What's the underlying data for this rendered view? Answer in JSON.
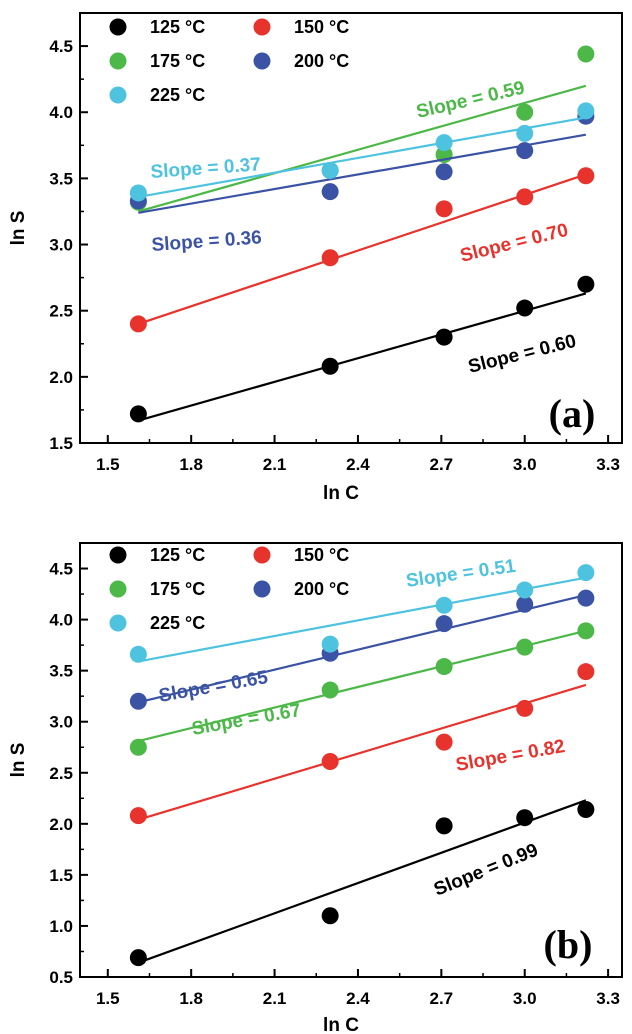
{
  "chart_data": [
    {
      "type": "scatter",
      "panel_label": "(a)",
      "xlabel": "ln C",
      "ylabel": "ln S",
      "xlim": [
        1.4,
        3.35
      ],
      "ylim": [
        1.5,
        4.75
      ],
      "xticks": [
        "1.5",
        "1.8",
        "2.1",
        "2.4",
        "2.7",
        "3.0",
        "3.3"
      ],
      "yticks": [
        "1.5",
        "2.0",
        "2.5",
        "3.0",
        "3.5",
        "4.0",
        "4.5"
      ],
      "legend_position": "top-left",
      "x": [
        1.61,
        2.3,
        2.71,
        3.0,
        3.22
      ],
      "series": [
        {
          "name": "125 °C",
          "color": "#000000",
          "y": [
            1.72,
            2.08,
            2.3,
            2.52,
            2.7
          ],
          "fit": [
            1.67,
            2.63
          ],
          "slope_label": "Slope = 0.60"
        },
        {
          "name": "150 °C",
          "color": "#e8322c",
          "y": [
            2.4,
            2.9,
            3.27,
            3.36,
            3.52
          ],
          "fit": [
            2.4,
            3.53
          ],
          "slope_label": "Slope = 0.70"
        },
        {
          "name": "175 °C",
          "color": "#4cb848",
          "y": [
            3.32,
            3.56,
            3.68,
            4.0,
            4.44
          ],
          "fit": [
            3.25,
            4.2
          ],
          "slope_label": "Slope = 0.59"
        },
        {
          "name": "200 °C",
          "color": "#3b53a4",
          "y": [
            3.33,
            3.4,
            3.55,
            3.71,
            3.97
          ],
          "fit": [
            3.24,
            3.83
          ],
          "slope_label": "Slope = 0.36"
        },
        {
          "name": "225 °C",
          "color": "#4ec3df",
          "y": [
            3.39,
            3.56,
            3.77,
            3.84,
            4.01
          ],
          "fit": [
            3.36,
            3.96
          ],
          "slope_label": "Slope = 0.37"
        }
      ]
    },
    {
      "type": "scatter",
      "panel_label": "(b)",
      "xlabel": "ln C",
      "ylabel": "ln S",
      "xlim": [
        1.4,
        3.35
      ],
      "ylim": [
        0.5,
        4.75
      ],
      "xticks": [
        "1.5",
        "1.8",
        "2.1",
        "2.4",
        "2.7",
        "3.0",
        "3.3"
      ],
      "yticks": [
        "0.5",
        "1.0",
        "1.5",
        "2.0",
        "2.5",
        "3.0",
        "3.5",
        "4.0",
        "4.5"
      ],
      "legend_position": "top-left",
      "x": [
        1.61,
        2.3,
        2.71,
        3.0,
        3.22
      ],
      "series": [
        {
          "name": "125 °C",
          "color": "#000000",
          "y": [
            0.69,
            1.1,
            1.98,
            2.06,
            2.14
          ],
          "fit": [
            0.64,
            2.23
          ],
          "slope_label": "Slope = 0.99"
        },
        {
          "name": "150 °C",
          "color": "#e8322c",
          "y": [
            2.08,
            2.61,
            2.8,
            3.13,
            3.49
          ],
          "fit": [
            2.04,
            3.36
          ],
          "slope_label": "Slope = 0.82"
        },
        {
          "name": "175 °C",
          "color": "#4cb848",
          "y": [
            2.75,
            3.31,
            3.54,
            3.73,
            3.89
          ],
          "fit": [
            2.81,
            3.89
          ],
          "slope_label": "Slope = 0.67"
        },
        {
          "name": "200 °C",
          "color": "#3b53a4",
          "y": [
            3.2,
            3.67,
            3.96,
            4.15,
            4.21
          ],
          "fit": [
            3.19,
            4.24
          ],
          "slope_label": "Slope = 0.65"
        },
        {
          "name": "225 °C",
          "color": "#4ec3df",
          "y": [
            3.66,
            3.76,
            4.14,
            4.29,
            4.46
          ],
          "fit": [
            3.59,
            4.41
          ],
          "slope_label": "Slope = 0.51"
        }
      ]
    }
  ]
}
